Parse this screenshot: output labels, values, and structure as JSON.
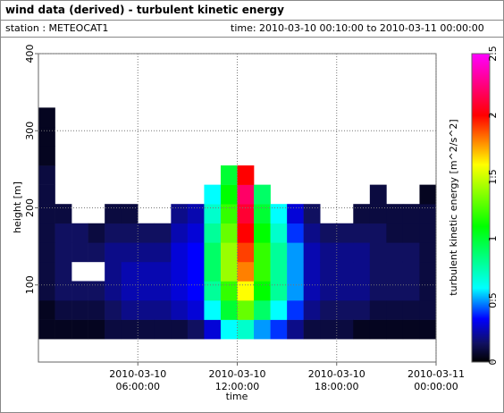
{
  "chart_data": {
    "type": "heatmap",
    "title": "wind data (derived) - turbulent kinetic energy",
    "station": "station : METEOCAT1",
    "period": "time: 2010-03-10 00:10:00 to 2010-03-11 00:00:00",
    "x_label": "time",
    "y_label": "height [m]",
    "colorbar_label": "turbulent kinetic energy [m^2/s^2]",
    "xlim": [
      0,
      24
    ],
    "xticks": [
      {
        "value": 6,
        "label": "2010-03-10 06:00:00"
      },
      {
        "value": 12,
        "label": "2010-03-10 12:00:00"
      },
      {
        "value": 18,
        "label": "2010-03-10 18:00:00"
      },
      {
        "value": 24,
        "label": "2010-03-11 00:00:00"
      }
    ],
    "ylim": [
      0,
      400
    ],
    "yticks": [
      100,
      200,
      300,
      400
    ],
    "zlim": [
      0,
      2.5
    ],
    "zticks": [
      0,
      0.5,
      1,
      1.5,
      2,
      2.5
    ],
    "grid": true,
    "colormap": [
      {
        "value": 0,
        "color": "#000000"
      },
      {
        "value": 0.15,
        "color": "#101060"
      },
      {
        "value": 0.35,
        "color": "#0000ff"
      },
      {
        "value": 0.6,
        "color": "#00ffff"
      },
      {
        "value": 1.1,
        "color": "#00ff00"
      },
      {
        "value": 1.6,
        "color": "#ffff00"
      },
      {
        "value": 2.0,
        "color": "#ff0000"
      },
      {
        "value": 2.5,
        "color": "#ff00ff"
      }
    ],
    "xbins": [
      0,
      1,
      2,
      3,
      4,
      5,
      6,
      7,
      8,
      9,
      10,
      11,
      12,
      13,
      14,
      15,
      16,
      17,
      18,
      19,
      20,
      21,
      22,
      23,
      24
    ],
    "ybins": [
      30,
      55,
      80,
      105,
      130,
      155,
      180,
      205,
      230,
      255,
      280,
      305,
      330
    ],
    "z": [
      [
        0.05,
        0.05,
        0.1,
        0.1,
        0.1,
        0.1,
        0.1,
        0.1,
        0.1,
        0.05,
        0.05,
        0.05
      ],
      [
        0.05,
        0.1,
        0.15,
        0.15,
        0.15,
        0.15,
        0.1,
        null,
        null,
        null,
        null,
        null
      ],
      [
        0.05,
        0.1,
        0.15,
        null,
        0.15,
        0.15,
        null,
        null,
        null,
        null,
        null,
        null
      ],
      [
        0.05,
        0.1,
        0.15,
        null,
        0.15,
        0.1,
        null,
        null,
        null,
        null,
        null,
        null
      ],
      [
        0.1,
        0.15,
        0.2,
        0.2,
        0.2,
        0.15,
        0.1,
        null,
        null,
        null,
        null,
        null
      ],
      [
        0.1,
        0.2,
        0.25,
        0.25,
        0.2,
        0.15,
        0.1,
        null,
        null,
        null,
        null,
        null
      ],
      [
        0.1,
        0.2,
        0.25,
        0.25,
        0.2,
        0.15,
        null,
        null,
        null,
        null,
        null,
        null
      ],
      [
        0.1,
        0.2,
        0.25,
        0.25,
        0.2,
        0.15,
        null,
        null,
        null,
        null,
        null,
        null
      ],
      [
        0.1,
        0.25,
        0.3,
        0.3,
        0.3,
        0.25,
        0.2,
        null,
        null,
        null,
        null,
        null
      ],
      [
        0.15,
        0.3,
        0.35,
        0.35,
        0.35,
        0.3,
        0.25,
        null,
        null,
        null,
        null,
        null
      ],
      [
        0.3,
        0.6,
        0.8,
        0.9,
        0.9,
        0.8,
        0.7,
        0.6,
        null,
        null,
        null,
        null
      ],
      [
        0.6,
        1.0,
        1.2,
        1.4,
        1.4,
        1.3,
        1.2,
        1.1,
        1.0,
        null,
        null,
        null
      ],
      [
        0.7,
        1.3,
        1.6,
        1.8,
        1.9,
        2.0,
        2.1,
        2.2,
        2.0,
        null,
        null,
        null
      ],
      [
        0.5,
        0.9,
        1.1,
        1.2,
        1.2,
        1.1,
        1.0,
        0.9,
        null,
        null,
        null,
        null
      ],
      [
        0.4,
        0.6,
        0.8,
        0.8,
        0.8,
        0.7,
        0.6,
        null,
        null,
        null,
        null,
        null
      ],
      [
        0.2,
        0.4,
        0.5,
        0.5,
        0.5,
        0.4,
        0.3,
        null,
        null,
        null,
        null,
        null
      ],
      [
        0.1,
        0.2,
        0.25,
        0.25,
        0.25,
        0.2,
        0.15,
        null,
        null,
        null,
        null,
        null
      ],
      [
        0.1,
        0.15,
        0.2,
        0.2,
        0.2,
        0.15,
        null,
        null,
        null,
        null,
        null,
        null
      ],
      [
        0.1,
        0.15,
        0.2,
        0.2,
        0.2,
        0.15,
        null,
        null,
        null,
        null,
        null,
        null
      ],
      [
        0.05,
        0.15,
        0.2,
        0.2,
        0.2,
        0.15,
        0.1,
        null,
        null,
        null,
        null,
        null
      ],
      [
        0.05,
        0.1,
        0.15,
        0.15,
        0.15,
        0.15,
        0.1,
        0.1,
        null,
        null,
        null,
        null
      ],
      [
        0.05,
        0.1,
        0.15,
        0.15,
        0.15,
        0.1,
        0.1,
        null,
        null,
        null,
        null,
        null
      ],
      [
        0.05,
        0.1,
        0.15,
        0.15,
        0.15,
        0.1,
        0.1,
        null,
        null,
        null,
        null,
        null
      ],
      [
        0.05,
        0.1,
        0.1,
        0.1,
        0.1,
        0.1,
        0.1,
        0.05,
        null,
        null,
        null,
        null
      ]
    ]
  }
}
